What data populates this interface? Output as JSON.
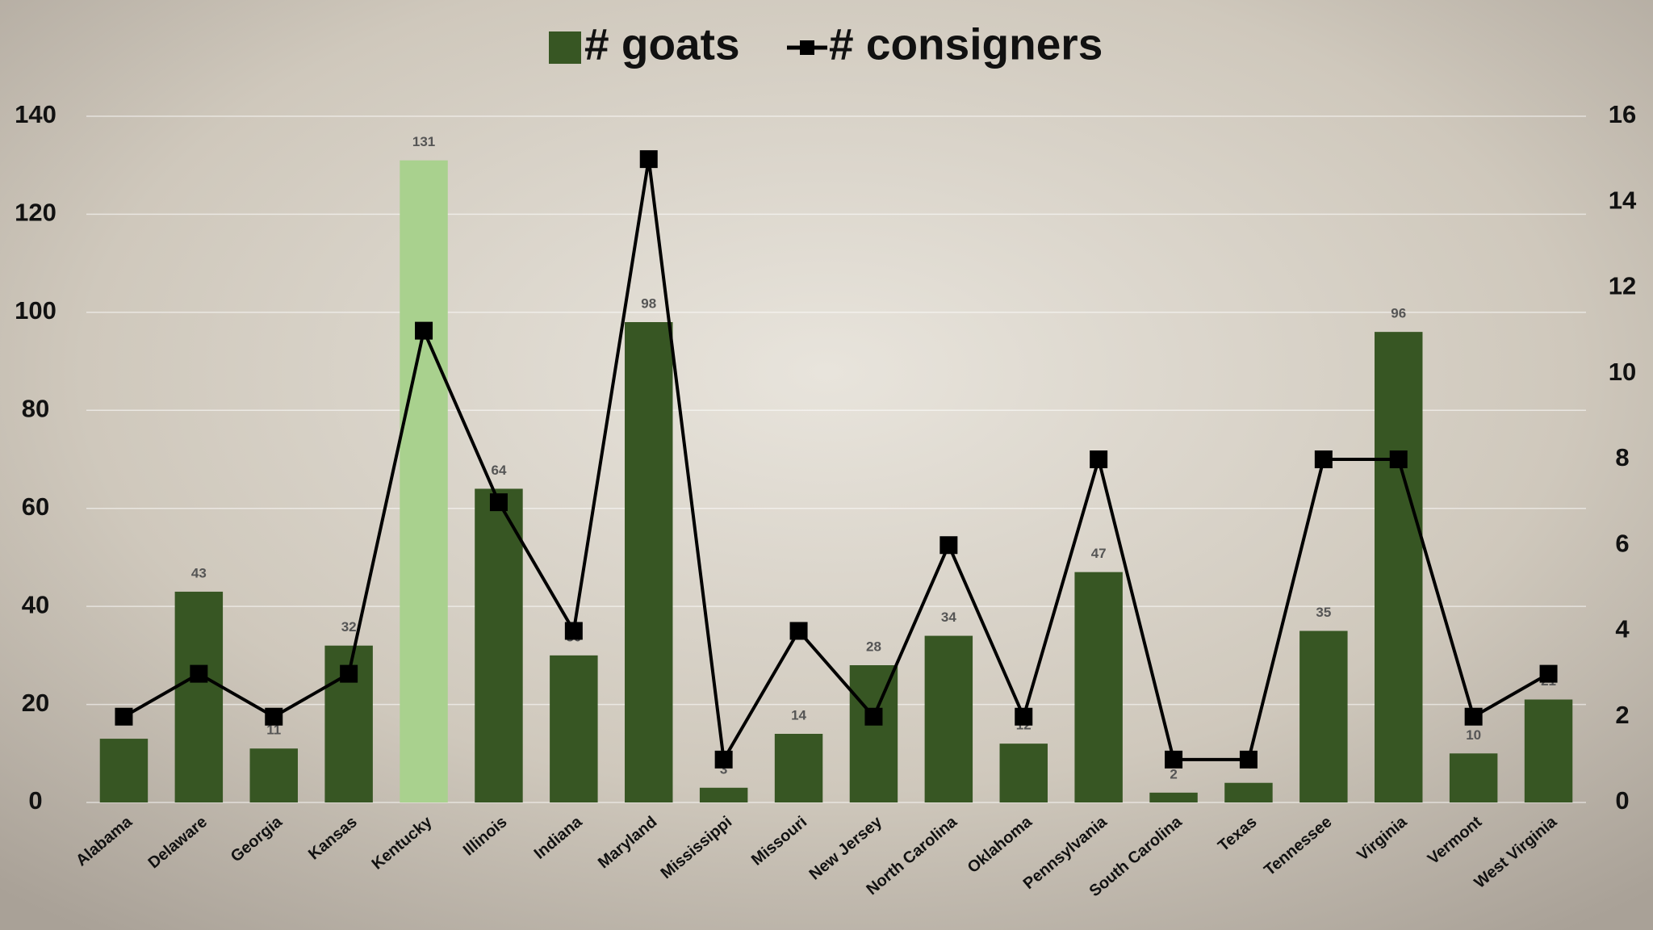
{
  "chart_data": {
    "type": "bar+line",
    "categories": [
      "Alabama",
      "Delaware",
      "Georgia",
      "Kansas",
      "Kentucky",
      "Illinois",
      "Indiana",
      "Maryland",
      "Mississippi",
      "Missouri",
      "New Jersey",
      "North Carolina",
      "Oklahoma",
      "Pennsylvania",
      "South Carolina",
      "Texas",
      "Tennessee",
      "Virginia",
      "Vermont",
      "West Virginia"
    ],
    "series": [
      {
        "name": "# goats",
        "type": "bar",
        "color": "#375623",
        "colors": [
          "#375623",
          "#375623",
          "#375623",
          "#375623",
          "#a9d18e",
          "#375623",
          "#375623",
          "#375623",
          "#375623",
          "#375623",
          "#375623",
          "#375623",
          "#375623",
          "#375623",
          "#375623",
          "#375623",
          "#375623",
          "#375623",
          "#375623",
          "#375623"
        ],
        "values": [
          13,
          43,
          11,
          32,
          131,
          64,
          30,
          98,
          3,
          14,
          28,
          34,
          12,
          47,
          2,
          4,
          35,
          96,
          10,
          21
        ]
      },
      {
        "name": "# consigners",
        "type": "line",
        "axis": "y2",
        "color": "#000000",
        "values": [
          2,
          3,
          2,
          3,
          11,
          7,
          4,
          15,
          1,
          4,
          2,
          6,
          2,
          8,
          1,
          1,
          8,
          8,
          2,
          3
        ]
      }
    ],
    "ylim": [
      0,
      140
    ],
    "yticks": [
      0,
      20,
      40,
      60,
      80,
      100,
      120,
      140
    ],
    "y2lim": [
      0,
      16
    ],
    "y2ticks": [
      0,
      2,
      4,
      6,
      8,
      10,
      12,
      14,
      16
    ],
    "grid": true,
    "legend": "top"
  }
}
